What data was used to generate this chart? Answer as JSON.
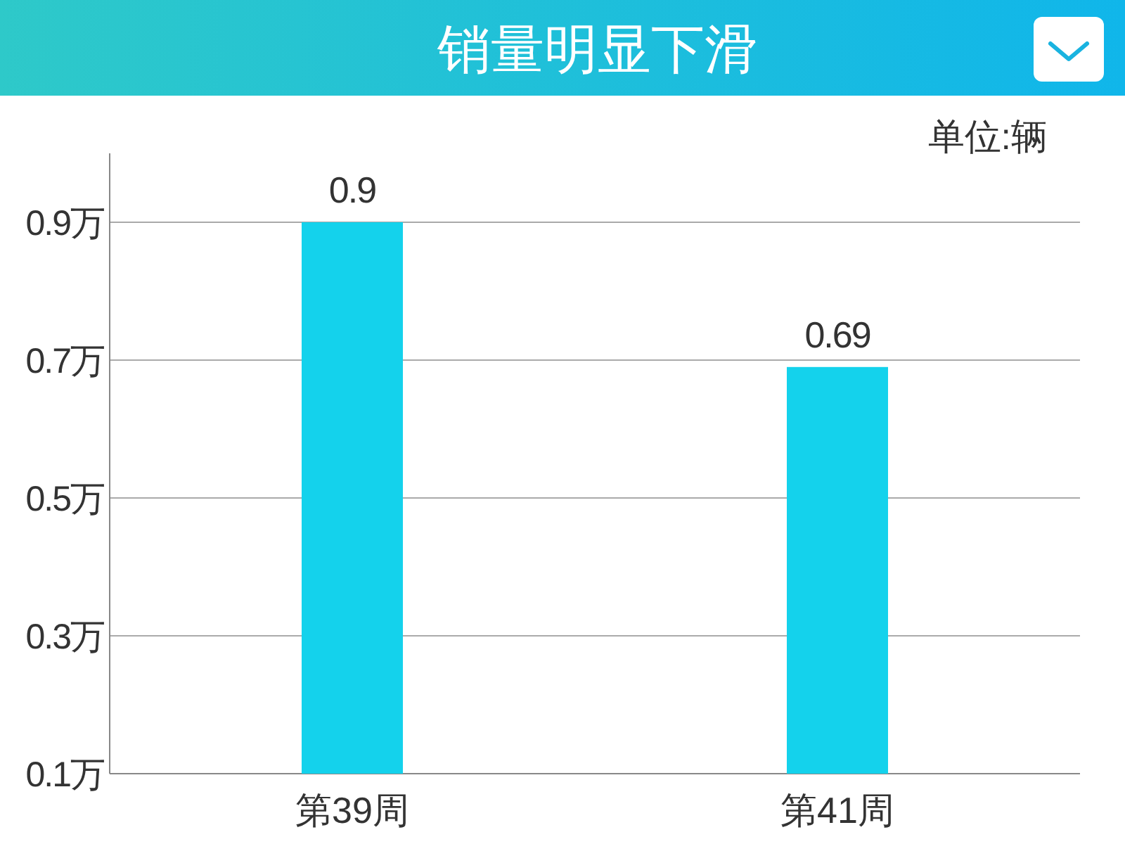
{
  "chart_data": {
    "type": "bar",
    "title": "销量明显下滑",
    "annotations": [
      "单位:辆"
    ],
    "categories": [
      "第39周",
      "第41周"
    ],
    "values": [
      0.9,
      0.69
    ],
    "color": "#14d2ec",
    "ylim": [
      0.1,
      1.0
    ],
    "yticks": [
      {
        "value": 0.1,
        "label": "0.1万"
      },
      {
        "value": 0.3,
        "label": "0.3万"
      },
      {
        "value": 0.5,
        "label": "0.5万"
      },
      {
        "value": 0.7,
        "label": "0.7万"
      },
      {
        "value": 0.9,
        "label": "0.9万"
      }
    ],
    "grid": "y",
    "data_labels": true
  }
}
